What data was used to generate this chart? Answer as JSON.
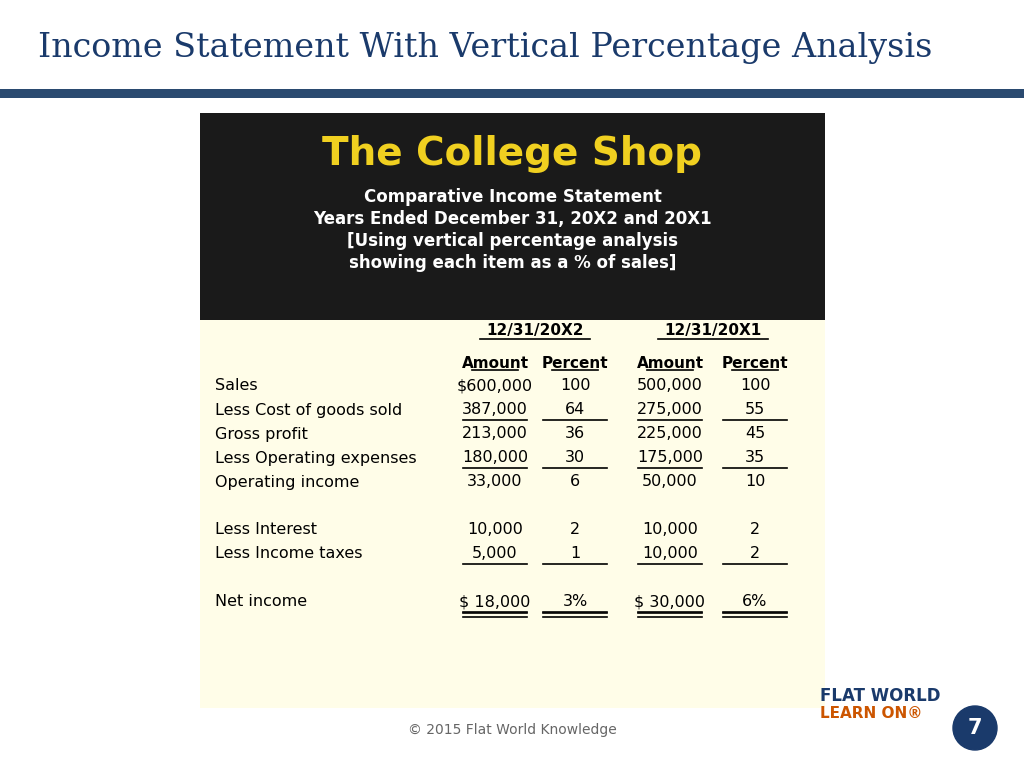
{
  "page_title": "Income Statement With Vertical Percentage Analysis",
  "page_title_color": "#1a3a6b",
  "page_title_fontsize": 24,
  "page_bg": "#ffffff",
  "table_bg": "#fffde8",
  "header_bg": "#1a1a1a",
  "shop_name": "The College Shop",
  "shop_name_color": "#f0d020",
  "shop_name_fontsize": 28,
  "subtitle_lines": [
    "Comparative Income Statement",
    "Years Ended December 31, 20X2 and 20X1",
    "[Using vertical percentage analysis",
    "showing each item as a % of sales]"
  ],
  "subtitle_color": "#ffffff",
  "subtitle_fontsize": 12,
  "rows": [
    {
      "label": "Sales",
      "amt2": "$600,000",
      "pct2": "100",
      "amt1": "500,000",
      "pct1": "100",
      "ul_a2": false,
      "ul_p2": false,
      "ul_a1": false,
      "ul_p1": false,
      "blank": false,
      "double": false
    },
    {
      "label": "Less Cost of goods sold",
      "amt2": "387,000",
      "pct2": "64",
      "amt1": "275,000",
      "pct1": "55",
      "ul_a2": true,
      "ul_p2": true,
      "ul_a1": true,
      "ul_p1": true,
      "blank": false,
      "double": false
    },
    {
      "label": "Gross profit",
      "amt2": "213,000",
      "pct2": "36",
      "amt1": "225,000",
      "pct1": "45",
      "ul_a2": false,
      "ul_p2": false,
      "ul_a1": false,
      "ul_p1": false,
      "blank": false,
      "double": false
    },
    {
      "label": "Less Operating expenses",
      "amt2": "180,000",
      "pct2": "30",
      "amt1": "175,000",
      "pct1": "35",
      "ul_a2": true,
      "ul_p2": true,
      "ul_a1": true,
      "ul_p1": true,
      "blank": false,
      "double": false
    },
    {
      "label": "Operating income",
      "amt2": "33,000",
      "pct2": "6",
      "amt1": "50,000",
      "pct1": "10",
      "ul_a2": false,
      "ul_p2": false,
      "ul_a1": false,
      "ul_p1": false,
      "blank": false,
      "double": false
    },
    {
      "label": "",
      "amt2": "",
      "pct2": "",
      "amt1": "",
      "pct1": "",
      "ul_a2": false,
      "ul_p2": false,
      "ul_a1": false,
      "ul_p1": false,
      "blank": true,
      "double": false
    },
    {
      "label": "Less Interest",
      "amt2": "10,000",
      "pct2": "2",
      "amt1": "10,000",
      "pct1": "2",
      "ul_a2": false,
      "ul_p2": false,
      "ul_a1": false,
      "ul_p1": false,
      "blank": false,
      "double": false
    },
    {
      "label": "Less Income taxes",
      "amt2": "5,000",
      "pct2": "1",
      "amt1": "10,000",
      "pct1": "2",
      "ul_a2": true,
      "ul_p2": true,
      "ul_a1": true,
      "ul_p1": true,
      "blank": false,
      "double": false
    },
    {
      "label": "",
      "amt2": "",
      "pct2": "",
      "amt1": "",
      "pct1": "",
      "ul_a2": false,
      "ul_p2": false,
      "ul_a1": false,
      "ul_p1": false,
      "blank": true,
      "double": false
    },
    {
      "label": "Net income",
      "amt2": "$ 18,000",
      "pct2": "3%",
      "amt1": "$ 30,000",
      "pct1": "6%",
      "ul_a2": true,
      "ul_p2": true,
      "ul_a1": true,
      "ul_p1": true,
      "blank": false,
      "double": true
    }
  ],
  "footer_text": "© 2015 Flat World Knowledge",
  "footer_color": "#666666",
  "flatworld_text": "FLAT WORLD",
  "flatworld_color": "#1a3a6b",
  "learnon_text": "LEARN ON®",
  "learnon_color": "#cc5500",
  "page_num": "7",
  "bar_color": "#2a4a70"
}
